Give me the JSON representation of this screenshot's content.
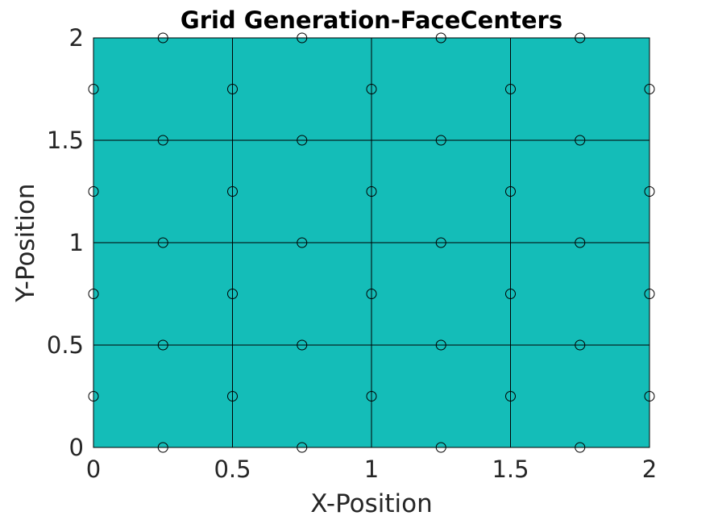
{
  "chart_data": {
    "type": "scatter",
    "title": "Grid Generation-FaceCenters",
    "xlabel": "X-Position",
    "ylabel": "Y-Position",
    "xlim": [
      0,
      2
    ],
    "ylim": [
      0,
      2
    ],
    "xticks": [
      "0",
      "0.5",
      "1",
      "1.5",
      "2"
    ],
    "yticks": [
      "0",
      "0.5",
      "1",
      "1.5",
      "2"
    ],
    "grid_lines_x": [
      0,
      0.5,
      1,
      1.5,
      2
    ],
    "grid_lines_y": [
      0,
      0.5,
      1,
      1.5,
      2
    ],
    "fill_color": "#14bdb8",
    "line_color": "#000000",
    "marker": "open-circle",
    "series": [
      {
        "points": [
          [
            0.25,
            0
          ],
          [
            0.75,
            0
          ],
          [
            1.25,
            0
          ],
          [
            1.75,
            0
          ],
          [
            0.25,
            0.5
          ],
          [
            0.75,
            0.5
          ],
          [
            1.25,
            0.5
          ],
          [
            1.75,
            0.5
          ],
          [
            0.25,
            1
          ],
          [
            0.75,
            1
          ],
          [
            1.25,
            1
          ],
          [
            1.75,
            1
          ],
          [
            0.25,
            1.5
          ],
          [
            0.75,
            1.5
          ],
          [
            1.25,
            1.5
          ],
          [
            1.75,
            1.5
          ],
          [
            0.25,
            2
          ],
          [
            0.75,
            2
          ],
          [
            1.25,
            2
          ],
          [
            1.75,
            2
          ],
          [
            0,
            0.25
          ],
          [
            0.5,
            0.25
          ],
          [
            1,
            0.25
          ],
          [
            1.5,
            0.25
          ],
          [
            2,
            0.25
          ],
          [
            0,
            0.75
          ],
          [
            0.5,
            0.75
          ],
          [
            1,
            0.75
          ],
          [
            1.5,
            0.75
          ],
          [
            2,
            0.75
          ],
          [
            0,
            1.25
          ],
          [
            0.5,
            1.25
          ],
          [
            1,
            1.25
          ],
          [
            1.5,
            1.25
          ],
          [
            2,
            1.25
          ],
          [
            0,
            1.75
          ],
          [
            0.5,
            1.75
          ],
          [
            1,
            1.75
          ],
          [
            1.5,
            1.75
          ],
          [
            2,
            1.75
          ]
        ]
      }
    ]
  }
}
